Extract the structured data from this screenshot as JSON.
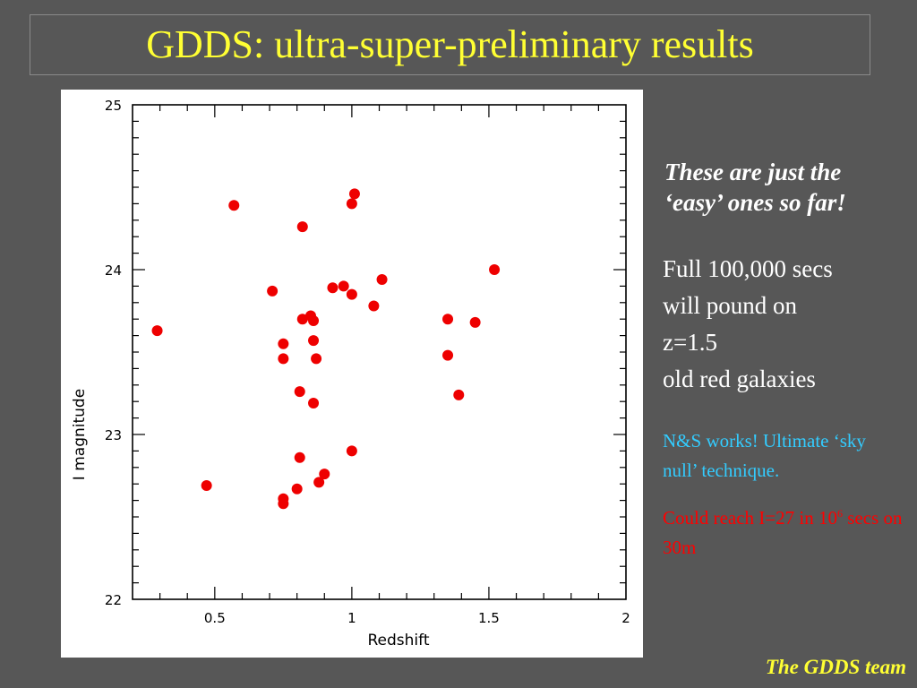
{
  "slide": {
    "title": "GDDS: ultra-super-preliminary results",
    "emphasis": "These are just the\n‘easy’ ones so far!",
    "body": "Full 100,000 secs\nwill pound on\nz=1.5\nold red galaxies",
    "cyan_note": {
      "part1": "N&S",
      "part2": " works! Ultimate ‘sky null’ technique."
    },
    "red_note": {
      "pre": "Could reach I=27 in 10",
      "exp": "6",
      "post": " secs on 30m"
    },
    "footer": "The GDDS team"
  },
  "colors": {
    "background": "#575757",
    "title": "#ffff33",
    "points": "#ee0000",
    "cyan": "#33ccff",
    "red": "#ff0000"
  },
  "chart_data": {
    "type": "scatter",
    "xlabel": "Redshift",
    "ylabel": "I  magnitude",
    "xlim": [
      0.2,
      2.0
    ],
    "ylim": [
      22,
      25
    ],
    "x_ticks": [
      0.5,
      1,
      1.5,
      2
    ],
    "x_tick_labels": [
      "0.5",
      "1",
      "1.5",
      "2"
    ],
    "y_ticks": [
      22,
      23,
      24,
      25
    ],
    "y_tick_labels": [
      "22",
      "23",
      "24",
      "25"
    ],
    "grid": false,
    "series": [
      {
        "points": [
          [
            0.29,
            23.63
          ],
          [
            0.47,
            22.69
          ],
          [
            0.57,
            24.39
          ],
          [
            0.71,
            23.87
          ],
          [
            0.75,
            23.55
          ],
          [
            0.75,
            23.46
          ],
          [
            0.75,
            22.61
          ],
          [
            0.75,
            22.58
          ],
          [
            0.8,
            22.67
          ],
          [
            0.81,
            23.26
          ],
          [
            0.81,
            22.86
          ],
          [
            0.82,
            24.26
          ],
          [
            0.82,
            23.7
          ],
          [
            0.85,
            23.72
          ],
          [
            0.86,
            23.69
          ],
          [
            0.86,
            23.57
          ],
          [
            0.86,
            23.19
          ],
          [
            0.87,
            23.46
          ],
          [
            0.88,
            22.71
          ],
          [
            0.9,
            22.76
          ],
          [
            0.93,
            23.89
          ],
          [
            0.97,
            23.9
          ],
          [
            1.0,
            24.4
          ],
          [
            1.0,
            23.85
          ],
          [
            1.0,
            22.9
          ],
          [
            1.01,
            24.46
          ],
          [
            1.08,
            23.78
          ],
          [
            1.11,
            23.94
          ],
          [
            1.35,
            23.7
          ],
          [
            1.35,
            23.48
          ],
          [
            1.39,
            23.24
          ],
          [
            1.45,
            23.68
          ],
          [
            1.52,
            24.0
          ]
        ]
      }
    ]
  }
}
